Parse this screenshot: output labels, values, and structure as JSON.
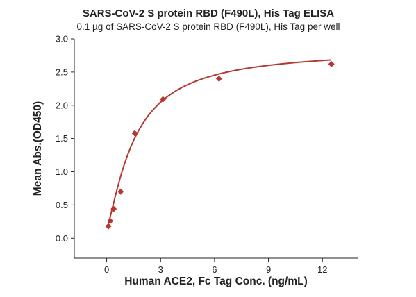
{
  "chart_data": {
    "type": "scatter",
    "title": "SARS-CoV-2 S protein RBD (F490L), His Tag ELISA",
    "subtitle": "0.1 µg of SARS-CoV-2 S protein RBD (F490L), His Tag per well",
    "xlabel": "Human ACE2, Fc Tag Conc. (ng/mL)",
    "ylabel": "Mean Abs.(OD450)",
    "xlim": [
      -1.8,
      14.0
    ],
    "ylim": [
      -0.3,
      3.0
    ],
    "xticks": [
      0,
      3,
      6,
      9,
      12
    ],
    "xtick_labels": [
      "0",
      "3",
      "6",
      "9",
      "12"
    ],
    "yticks": [
      0.0,
      0.5,
      1.0,
      1.5,
      2.0,
      2.5,
      3.0
    ],
    "ytick_labels": [
      "0.0",
      "0.5",
      "1.0",
      "1.5",
      "2.0",
      "2.5",
      "3.0"
    ],
    "grid": false,
    "legend": "none",
    "series": [
      {
        "marker": "diamond",
        "color": "#b5372f",
        "x": [
          0.098,
          0.195,
          0.39,
          0.78,
          1.56,
          3.13,
          6.25,
          12.5
        ],
        "y": [
          0.18,
          0.26,
          0.44,
          0.7,
          1.58,
          2.09,
          2.4,
          2.62
        ]
      }
    ],
    "fit_curve": {
      "color": "#b5372f",
      "model": "4PL",
      "bottom": 0.15,
      "top": 2.85,
      "ec50": 1.55,
      "hill": 1.3
    }
  }
}
